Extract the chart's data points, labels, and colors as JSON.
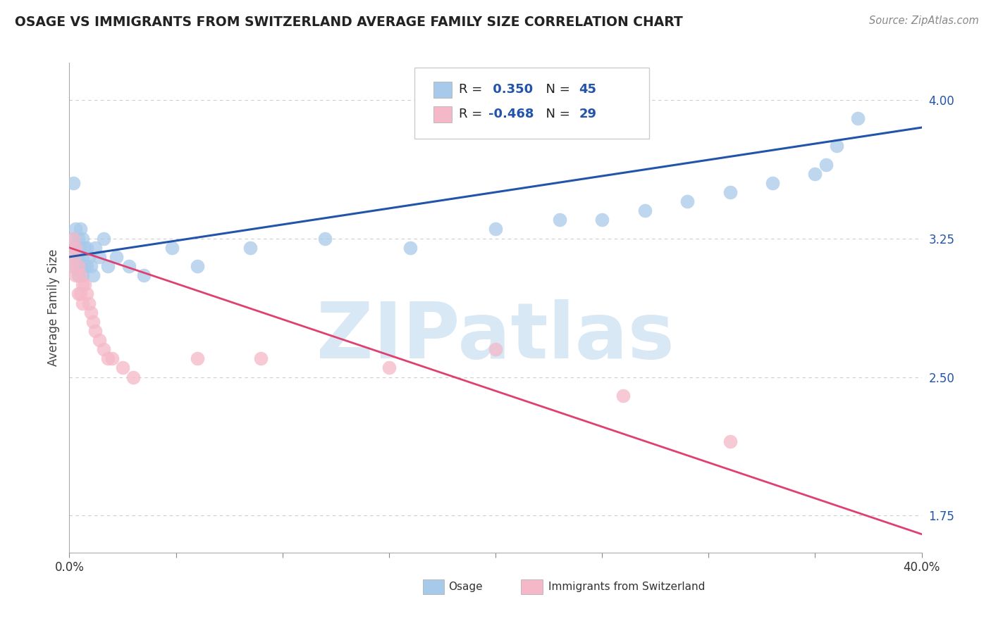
{
  "title": "OSAGE VS IMMIGRANTS FROM SWITZERLAND AVERAGE FAMILY SIZE CORRELATION CHART",
  "source": "Source: ZipAtlas.com",
  "ylabel": "Average Family Size",
  "watermark": "ZIPatlas",
  "xlim": [
    0.0,
    0.4
  ],
  "ylim": [
    1.55,
    4.2
  ],
  "yticks": [
    1.75,
    2.5,
    3.25,
    4.0
  ],
  "xtick_positions": [
    0.0,
    0.05,
    0.1,
    0.15,
    0.2,
    0.25,
    0.3,
    0.35,
    0.4
  ],
  "osage_R": 0.35,
  "osage_N": 45,
  "swiss_R": -0.468,
  "swiss_N": 29,
  "blue_scatter_color": "#A8CAEA",
  "pink_scatter_color": "#F5B8C8",
  "blue_line_color": "#2255AA",
  "pink_line_color": "#E04070",
  "grid_color": "#CCCCCC",
  "osage_x": [
    0.001,
    0.002,
    0.002,
    0.003,
    0.003,
    0.003,
    0.004,
    0.004,
    0.004,
    0.005,
    0.005,
    0.005,
    0.006,
    0.006,
    0.006,
    0.007,
    0.007,
    0.008,
    0.008,
    0.009,
    0.01,
    0.011,
    0.012,
    0.014,
    0.016,
    0.018,
    0.022,
    0.028,
    0.035,
    0.048,
    0.06,
    0.085,
    0.12,
    0.16,
    0.2,
    0.23,
    0.25,
    0.27,
    0.29,
    0.31,
    0.33,
    0.35,
    0.355,
    0.36,
    0.37
  ],
  "osage_y": [
    3.15,
    3.55,
    3.25,
    3.3,
    3.2,
    3.1,
    3.25,
    3.15,
    3.05,
    3.3,
    3.2,
    3.1,
    3.25,
    3.15,
    3.05,
    3.2,
    3.1,
    3.2,
    3.1,
    3.15,
    3.1,
    3.05,
    3.2,
    3.15,
    3.25,
    3.1,
    3.15,
    3.1,
    3.05,
    3.2,
    3.1,
    3.2,
    3.25,
    3.2,
    3.3,
    3.35,
    3.35,
    3.4,
    3.45,
    3.5,
    3.55,
    3.6,
    3.65,
    3.75,
    3.9
  ],
  "swiss_x": [
    0.001,
    0.002,
    0.002,
    0.003,
    0.003,
    0.004,
    0.004,
    0.005,
    0.005,
    0.006,
    0.006,
    0.007,
    0.008,
    0.009,
    0.01,
    0.011,
    0.012,
    0.014,
    0.016,
    0.018,
    0.02,
    0.025,
    0.03,
    0.06,
    0.09,
    0.15,
    0.2,
    0.26,
    0.31
  ],
  "swiss_y": [
    3.1,
    3.25,
    3.15,
    3.2,
    3.05,
    3.1,
    2.95,
    3.05,
    2.95,
    3.0,
    2.9,
    3.0,
    2.95,
    2.9,
    2.85,
    2.8,
    2.75,
    2.7,
    2.65,
    2.6,
    2.6,
    2.55,
    2.5,
    2.6,
    2.6,
    2.55,
    2.65,
    2.4,
    2.15
  ]
}
